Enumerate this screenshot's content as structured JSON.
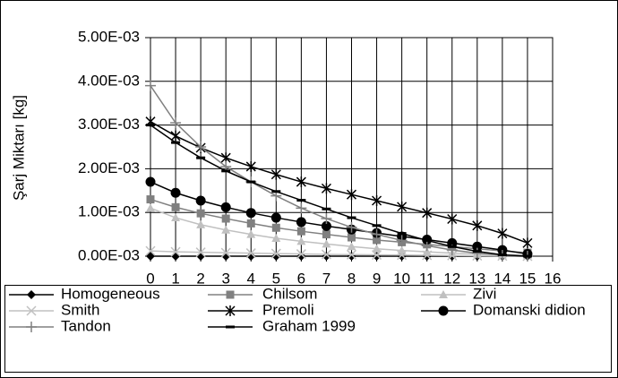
{
  "chart_data": {
    "type": "line",
    "y_label": "Şarj Miktarı [kg]",
    "x": [
      0,
      1,
      2,
      3,
      4,
      5,
      6,
      7,
      8,
      9,
      10,
      11,
      12,
      13,
      14,
      15
    ],
    "xlim": [
      0,
      16
    ],
    "xticks": [
      0,
      1,
      2,
      3,
      4,
      5,
      6,
      7,
      8,
      9,
      10,
      11,
      12,
      13,
      14,
      15,
      16
    ],
    "ylim": [
      0,
      0.005
    ],
    "yticks": [
      {
        "value": 0,
        "label": "0.00E-03"
      },
      {
        "value": 0.001,
        "label": "1.00E-03"
      },
      {
        "value": 0.002,
        "label": "2.00E-03"
      },
      {
        "value": 0.003,
        "label": "3.00E-03"
      },
      {
        "value": 0.004,
        "label": "4.00E-03"
      },
      {
        "value": 0.005,
        "label": "5.00E-03"
      }
    ],
    "grid": true,
    "legend": "bottom",
    "series": [
      {
        "name": "Homogeneous",
        "color": "#000000",
        "marker": "diamond",
        "values": [
          0,
          0,
          0,
          0,
          0,
          0,
          0,
          0,
          0,
          0,
          0,
          0,
          0,
          0,
          0,
          0
        ]
      },
      {
        "name": "Chilsom",
        "color": "#808080",
        "marker": "square",
        "values": [
          0.0013,
          0.00112,
          0.00098,
          0.00086,
          0.00075,
          0.00065,
          0.00057,
          0.0005,
          0.00043,
          0.00037,
          0.00032,
          0.00027,
          0.00022,
          0.00017,
          0.00012,
          8e-05
        ]
      },
      {
        "name": "Zivi",
        "color": "#c0c0c0",
        "marker": "triangle",
        "values": [
          0.0011,
          0.00088,
          0.00072,
          0.0006,
          0.0005,
          0.00041,
          0.00034,
          0.00028,
          0.00022,
          0.00017,
          0.00013,
          0.0001,
          7e-05,
          5e-05,
          3e-05,
          2e-05
        ]
      },
      {
        "name": "Smith",
        "color": "#c0c0c0",
        "marker": "x",
        "values": [
          0.00012,
          0.0001,
          9e-05,
          8e-05,
          7e-05,
          6e-05,
          5e-05,
          4e-05,
          3.5e-05,
          3e-05,
          2.5e-05,
          2e-05,
          1.5e-05,
          1e-05,
          5e-06,
          0
        ]
      },
      {
        "name": "Premoli",
        "color": "#000000",
        "marker": "asterisk",
        "values": [
          0.00308,
          0.00275,
          0.00248,
          0.00225,
          0.00205,
          0.00187,
          0.0017,
          0.00155,
          0.00141,
          0.00127,
          0.00113,
          0.00099,
          0.00085,
          0.0007,
          0.00052,
          0.0003
        ]
      },
      {
        "name": "Domanski didion",
        "color": "#000000",
        "marker": "circle",
        "values": [
          0.0017,
          0.00145,
          0.00127,
          0.00112,
          0.00099,
          0.00088,
          0.00078,
          0.00069,
          0.00061,
          0.00053,
          0.00045,
          0.00038,
          0.0003,
          0.00022,
          0.00014,
          5e-05
        ]
      },
      {
        "name": "Tandon",
        "color": "#808080",
        "marker": "plus",
        "values": [
          0.0039,
          0.00305,
          0.0025,
          0.00205,
          0.0017,
          0.00138,
          0.0011,
          0.00086,
          0.00066,
          0.0005,
          0.00036,
          0.00024,
          0.00014,
          7e-05,
          2e-05,
          0
        ]
      },
      {
        "name": "Graham 1999",
        "color": "#000000",
        "marker": "dash",
        "values": [
          0.003,
          0.0026,
          0.00225,
          0.00195,
          0.0017,
          0.00148,
          0.00128,
          0.00108,
          0.00088,
          0.0007,
          0.00052,
          0.00036,
          0.00022,
          0.00011,
          3e-05,
          0
        ]
      }
    ]
  }
}
